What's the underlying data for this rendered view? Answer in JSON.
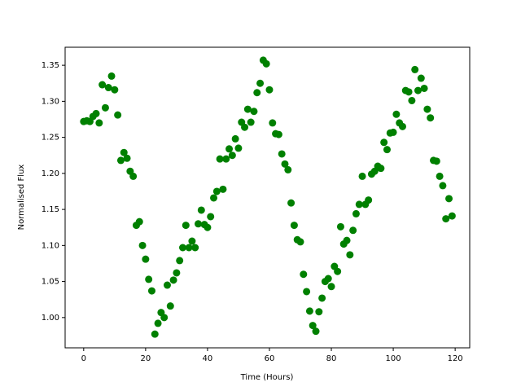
{
  "chart_data": {
    "type": "scatter",
    "xlabel": "Time (Hours)",
    "ylabel": "Normalised Flux",
    "color": "#008000",
    "xlim": [
      -6,
      124.7
    ],
    "ylim": [
      0.958,
      1.375
    ],
    "xticks": [
      0,
      20,
      40,
      60,
      80,
      100,
      120
    ],
    "yticks": [
      {
        "value": 1.0,
        "label": "1.00"
      },
      1.05,
      {
        "value": 1.1,
        "label": "1.10"
      },
      1.15,
      {
        "value": 1.2,
        "label": "1.20"
      },
      1.25,
      {
        "value": 1.3,
        "label": "1.30"
      },
      1.35
    ],
    "x": [
      0,
      1,
      2,
      3,
      4,
      5,
      6,
      7,
      8,
      9,
      10,
      11,
      12,
      13,
      14,
      15,
      16,
      17,
      18,
      19,
      20,
      21,
      22,
      23,
      24,
      25,
      26,
      27,
      28,
      29,
      30,
      31,
      32,
      33,
      34,
      35,
      36,
      37,
      38,
      39,
      40,
      41,
      42,
      43,
      44,
      45,
      46,
      47,
      48,
      49,
      50,
      51,
      52,
      53,
      54,
      55,
      56,
      57,
      58,
      59,
      60,
      61,
      62,
      63,
      64,
      65,
      66,
      67,
      68,
      69,
      70,
      71,
      72,
      73,
      74,
      75,
      76,
      77,
      78,
      79,
      80,
      81,
      82,
      83,
      84,
      85,
      86,
      87,
      88,
      89,
      90,
      91,
      92,
      93,
      94,
      95,
      96,
      97,
      98,
      99,
      100,
      101,
      102,
      103,
      104,
      105,
      106,
      107,
      108,
      109,
      110,
      111,
      112,
      113,
      114,
      115,
      116,
      117,
      118,
      119
    ],
    "values": [
      1.272,
      1.273,
      1.272,
      1.279,
      1.283,
      1.27,
      1.323,
      1.291,
      1.319,
      1.335,
      1.316,
      1.281,
      1.218,
      1.229,
      1.221,
      1.203,
      1.196,
      1.128,
      1.133,
      1.1,
      1.081,
      1.053,
      1.037,
      0.977,
      0.992,
      1.007,
      1.0,
      1.045,
      1.016,
      1.052,
      1.062,
      1.079,
      1.097,
      1.128,
      1.097,
      1.106,
      1.097,
      1.13,
      1.149,
      1.129,
      1.125,
      1.14,
      1.166,
      1.175,
      1.22,
      1.178,
      1.22,
      1.234,
      1.225,
      1.248,
      1.235,
      1.271,
      1.264,
      1.289,
      1.271,
      1.286,
      1.312,
      1.325,
      1.357,
      1.352,
      1.316,
      1.27,
      1.255,
      1.254,
      1.227,
      1.213,
      1.205,
      1.159,
      1.128,
      1.108,
      1.105,
      1.06,
      1.036,
      1.009,
      0.989,
      0.981,
      1.008,
      1.027,
      1.05,
      1.054,
      1.043,
      1.071,
      1.064,
      1.126,
      1.102,
      1.107,
      1.087,
      1.121,
      1.144,
      1.157,
      1.196,
      1.157,
      1.163,
      1.199,
      1.203,
      1.21,
      1.207,
      1.243,
      1.233,
      1.256,
      1.257,
      1.282,
      1.27,
      1.265,
      1.315,
      1.313,
      1.301,
      1.344,
      1.315,
      1.332,
      1.318,
      1.289,
      1.277,
      1.218,
      1.217,
      1.196,
      1.183,
      1.137,
      1.165,
      1.141
    ]
  }
}
